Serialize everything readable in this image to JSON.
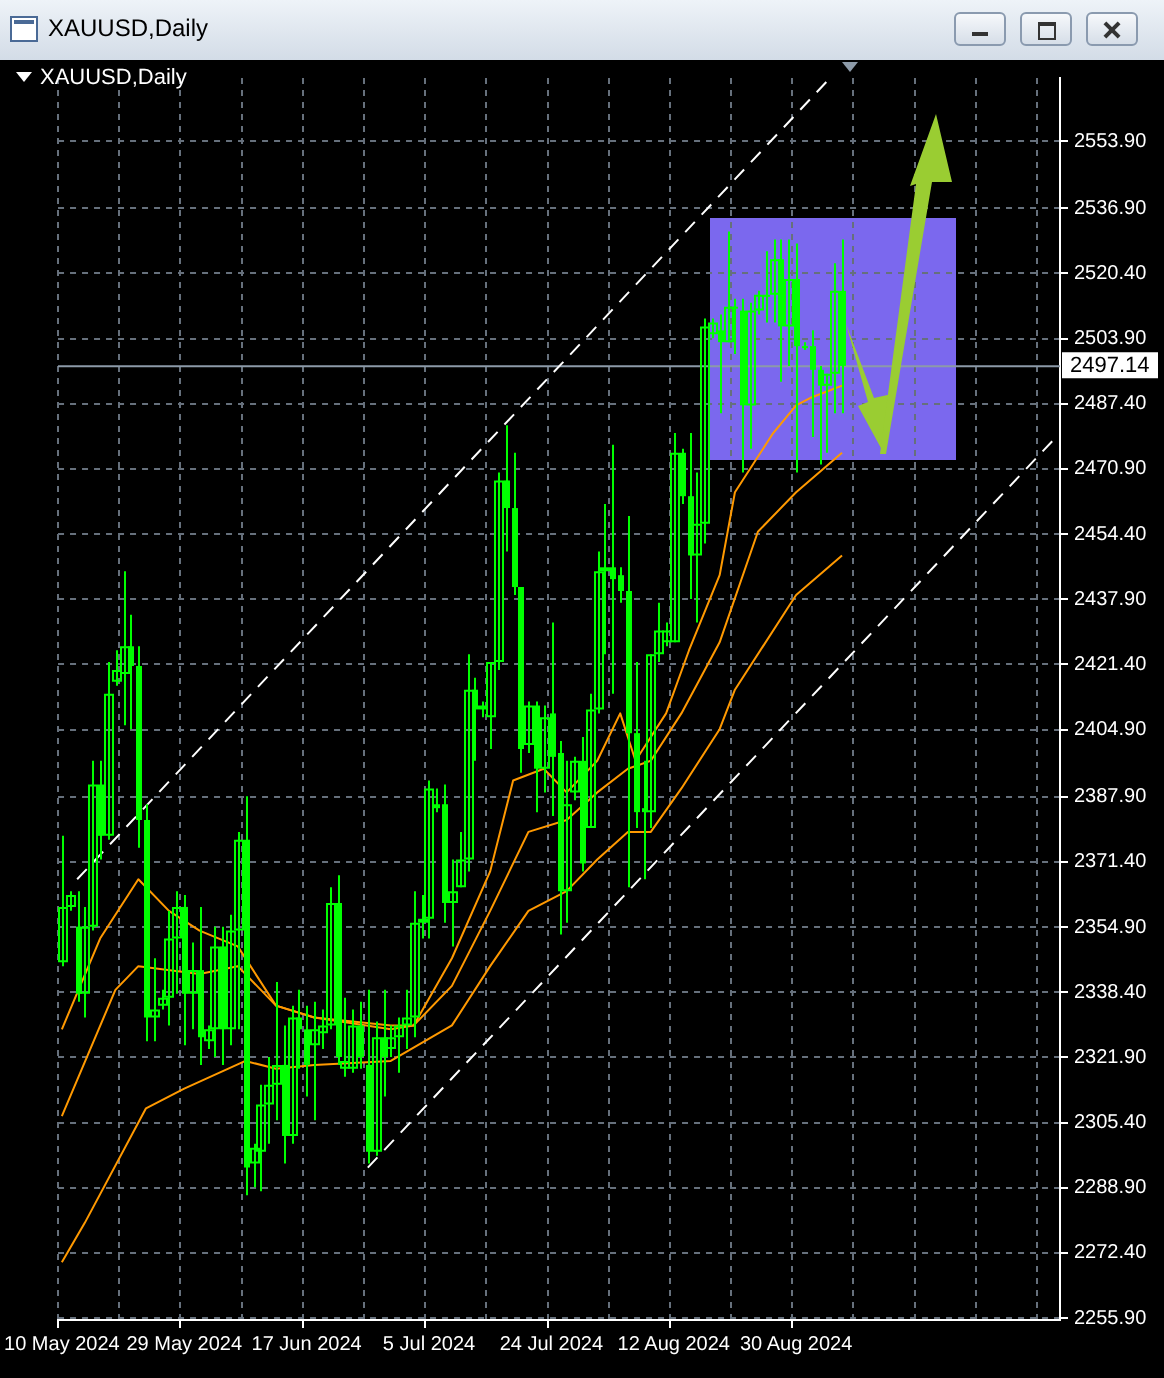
{
  "chart_data": {
    "type": "candlestick",
    "title": "XAUUSD,Daily",
    "subtitle": "XAUUSD,Daily",
    "categories": [
      "10 May 2024",
      null,
      null,
      null,
      null,
      null,
      null,
      null,
      null,
      null,
      null,
      null,
      null,
      null,
      null,
      null,
      "29 May 2024",
      null,
      null,
      null,
      null,
      null,
      null,
      null,
      null,
      null,
      null,
      null,
      null,
      null,
      null,
      null,
      "17 Jun 2024",
      null,
      null,
      null,
      null,
      null,
      null,
      null,
      null,
      null,
      null,
      null,
      null,
      null,
      null,
      null,
      "5 Jul 2024",
      null,
      null,
      null,
      null,
      null,
      null,
      null,
      null,
      null,
      null,
      null,
      null,
      null,
      null,
      null,
      "24 Jul 2024",
      null,
      null,
      null,
      null,
      null,
      null,
      null,
      null,
      null,
      null,
      null,
      null,
      null,
      null,
      null,
      "12 Aug 2024",
      null,
      null,
      null,
      null,
      null,
      null,
      null,
      null,
      null,
      null,
      null,
      null,
      null,
      null,
      null,
      "30 Aug 2024",
      null,
      null,
      null,
      null,
      null,
      null,
      null,
      null,
      null,
      null,
      null,
      null,
      null,
      null,
      null,
      null,
      null,
      null,
      null,
      null,
      null,
      null,
      null,
      null,
      null,
      null,
      null,
      null,
      null,
      null,
      null,
      null,
      null,
      null
    ],
    "color": "#00ff00",
    "ohlc": [
      [
        2346,
        2378,
        2345,
        2360
      ],
      [
        2360,
        2364,
        2359,
        2363
      ],
      [
        2355,
        2364,
        2336,
        2338
      ],
      [
        2338,
        2360,
        2332,
        2355
      ],
      [
        2355,
        2397,
        2354,
        2391
      ],
      [
        2391,
        2397,
        2372,
        2378
      ],
      [
        2378,
        2422,
        2377,
        2414
      ],
      [
        2417,
        2425,
        2416,
        2420
      ],
      [
        2419,
        2445,
        2406,
        2426
      ],
      [
        2426,
        2434,
        2405,
        2421
      ],
      [
        2421,
        2426,
        2375,
        2382
      ],
      [
        2382,
        2386,
        2326,
        2332
      ],
      [
        2332,
        2347,
        2326,
        2334
      ],
      [
        2335,
        2339,
        2334,
        2337
      ],
      [
        2337,
        2359,
        2330,
        2352
      ],
      [
        2352,
        2364,
        2338,
        2360
      ],
      [
        2360,
        2363,
        2325,
        2338
      ],
      [
        2338,
        2351,
        2329,
        2344
      ],
      [
        2344,
        2360,
        2320,
        2327
      ],
      [
        2326,
        2330,
        2324,
        2329
      ],
      [
        2329,
        2355,
        2322,
        2350
      ],
      [
        2350,
        2355,
        2320,
        2329
      ],
      [
        2329,
        2358,
        2325,
        2354
      ],
      [
        2354,
        2379,
        2329,
        2377
      ],
      [
        2377,
        2388,
        2287,
        2294
      ],
      [
        2295,
        2300,
        2289,
        2299
      ],
      [
        2298,
        2315,
        2288,
        2310
      ],
      [
        2310,
        2322,
        2300,
        2315
      ],
      [
        2315,
        2341,
        2306,
        2320
      ],
      [
        2320,
        2330,
        2295,
        2302
      ],
      [
        2302,
        2335,
        2300,
        2332
      ],
      [
        2332,
        2339,
        2319,
        2329
      ],
      [
        2329,
        2335,
        2312,
        2320
      ],
      [
        2325,
        2336,
        2306,
        2329
      ],
      [
        2328,
        2334,
        2324,
        2330
      ],
      [
        2330,
        2365,
        2329,
        2361
      ],
      [
        2361,
        2368,
        2320,
        2322
      ],
      [
        2319,
        2337,
        2317,
        2321
      ],
      [
        2319,
        2334,
        2318,
        2330
      ],
      [
        2330,
        2336,
        2319,
        2322
      ],
      [
        2320,
        2339,
        2295,
        2298
      ],
      [
        2298,
        2331,
        2297,
        2327
      ],
      [
        2327,
        2339,
        2312,
        2322
      ],
      [
        2324,
        2330,
        2322,
        2327
      ],
      [
        2327,
        2332,
        2318,
        2330
      ],
      [
        2330,
        2339,
        2324,
        2332
      ],
      [
        2332,
        2364,
        2327,
        2356
      ],
      [
        2356,
        2363,
        2352,
        2357
      ],
      [
        2357,
        2392,
        2352,
        2390
      ],
      [
        2386,
        2390,
        2384,
        2385
      ],
      [
        2386,
        2391,
        2356,
        2361
      ],
      [
        2361,
        2372,
        2350,
        2364
      ],
      [
        2365,
        2379,
        2365,
        2372
      ],
      [
        2372,
        2424,
        2369,
        2415
      ],
      [
        2415,
        2418,
        2397,
        2410
      ],
      [
        2410,
        2412,
        2408,
        2411
      ],
      [
        2408,
        2422,
        2400,
        2422
      ],
      [
        2422,
        2470,
        2420,
        2468
      ],
      [
        2468,
        2482,
        2450,
        2461
      ],
      [
        2461,
        2475,
        2439,
        2441
      ],
      [
        2441,
        2441,
        2394,
        2400
      ],
      [
        2401,
        2412,
        2399,
        2411
      ],
      [
        2411,
        2412,
        2384,
        2395
      ],
      [
        2395,
        2411,
        2389,
        2408
      ],
      [
        2409,
        2432,
        2383,
        2398
      ],
      [
        2399,
        2402,
        2353,
        2364
      ],
      [
        2364,
        2397,
        2356,
        2386
      ],
      [
        2389,
        2398,
        2387,
        2397
      ],
      [
        2397,
        2403,
        2369,
        2371
      ],
      [
        2380,
        2414,
        2380,
        2410
      ],
      [
        2410,
        2450,
        2409,
        2445
      ],
      [
        2445,
        2462,
        2424,
        2446
      ],
      [
        2446,
        2477,
        2414,
        2443
      ],
      [
        2444,
        2446,
        2437,
        2440
      ],
      [
        2440,
        2459,
        2365,
        2404
      ],
      [
        2404,
        2422,
        2380,
        2384
      ],
      [
        2385,
        2397,
        2367,
        2384
      ],
      [
        2384,
        2424,
        2380,
        2424
      ],
      [
        2424,
        2437,
        2422,
        2430
      ],
      [
        2427,
        2432,
        2426,
        2430
      ],
      [
        2427,
        2480,
        2427,
        2475
      ],
      [
        2475,
        2476,
        2462,
        2464
      ],
      [
        2464,
        2480,
        2438,
        2449
      ],
      [
        2449,
        2470,
        2432,
        2457
      ],
      [
        2457,
        2509,
        2452,
        2507
      ],
      [
        2505,
        2509,
        2504,
        2508
      ],
      [
        2506,
        2510,
        2485,
        2503
      ],
      [
        2503,
        2531,
        2503,
        2512
      ],
      [
        2512,
        2514,
        2500,
        2512
      ],
      [
        2511,
        2514,
        2470,
        2487
      ],
      [
        2487,
        2513,
        2476,
        2511
      ],
      [
        2511,
        2516,
        2510,
        2515
      ],
      [
        2515,
        2526,
        2508,
        2515
      ],
      [
        2515,
        2529,
        2508,
        2524
      ],
      [
        2524,
        2529,
        2493,
        2507
      ],
      [
        2507,
        2529,
        2497,
        2519
      ],
      [
        2519,
        2528,
        2470,
        2502
      ],
      [
        2502,
        2503,
        2501,
        2502
      ],
      [
        2502,
        2506,
        2479,
        2496
      ],
      [
        2496,
        2497,
        2472,
        2492
      ],
      [
        2492,
        2495,
        2475,
        2495
      ],
      [
        2495,
        2523,
        2485,
        2516
      ],
      [
        2516,
        2529,
        2485,
        2497
      ],
      null,
      null,
      null,
      null,
      null,
      null,
      null,
      null,
      null,
      null,
      null,
      null,
      null,
      null,
      null,
      null,
      null,
      null,
      null,
      null,
      null,
      null,
      null,
      null,
      null,
      null,
      null,
      null
    ],
    "series": [
      {
        "type": "line",
        "color": "#ff9900",
        "values": [
          2329,
          null,
          null,
          null,
          null,
          2352,
          null,
          null,
          null,
          null,
          2367,
          null,
          null,
          null,
          2359,
          null,
          null,
          null,
          2354,
          null,
          null,
          null,
          null,
          2350,
          null,
          null,
          null,
          null,
          2335,
          null,
          null,
          null,
          null,
          2332,
          null,
          null,
          null,
          null,
          null,
          null,
          null,
          null,
          null,
          2330,
          null,
          null,
          2330,
          null,
          null,
          null,
          null,
          2347,
          null,
          null,
          null,
          null,
          2369,
          null,
          null,
          2392,
          null,
          null,
          null,
          2395,
          null,
          null,
          2389,
          null,
          null,
          null,
          2397,
          null,
          null,
          2409,
          null,
          2397,
          null,
          null,
          null,
          2409,
          null,
          null,
          2425,
          null,
          null,
          null,
          2444,
          null,
          2465,
          null,
          null,
          null,
          null,
          2480,
          null,
          null,
          2487,
          null,
          2489,
          null,
          null,
          null,
          2492,
          null,
          null,
          null,
          null,
          null,
          null,
          null,
          null,
          null,
          null,
          null,
          null,
          null,
          null,
          null,
          null,
          null,
          null,
          null,
          null,
          null,
          null,
          null,
          null,
          null,
          null,
          null,
          null
        ]
      },
      {
        "type": "line",
        "color": "#ff9900",
        "values": [
          2307,
          null,
          null,
          null,
          null,
          null,
          null,
          2339,
          null,
          null,
          2345,
          null,
          null,
          null,
          null,
          null,
          null,
          null,
          2343,
          null,
          null,
          null,
          null,
          2345,
          null,
          null,
          null,
          null,
          2335,
          null,
          null,
          null,
          null,
          2332,
          null,
          null,
          null,
          null,
          null,
          null,
          null,
          null,
          null,
          2329,
          null,
          null,
          2330,
          null,
          null,
          null,
          null,
          2340,
          null,
          null,
          null,
          null,
          2359,
          null,
          null,
          null,
          null,
          2379,
          null,
          null,
          null,
          null,
          2382,
          null,
          null,
          null,
          2389,
          null,
          null,
          null,
          2395,
          null,
          null,
          2397,
          null,
          null,
          null,
          2409,
          null,
          null,
          null,
          null,
          2427,
          null,
          null,
          null,
          null,
          2455,
          null,
          null,
          null,
          null,
          2465,
          null,
          null,
          null,
          null,
          null,
          2475,
          null,
          null,
          null,
          null,
          null,
          null,
          null,
          null,
          null,
          null,
          null,
          null,
          null,
          null,
          null,
          null,
          null,
          null,
          null,
          null,
          null,
          null,
          null,
          null,
          null,
          null,
          null,
          null
        ]
      },
      {
        "type": "line",
        "color": "#ff9900",
        "values": [
          2270,
          null,
          null,
          2280,
          null,
          null,
          null,
          null,
          null,
          null,
          null,
          2309,
          null,
          null,
          null,
          null,
          2314,
          null,
          null,
          null,
          null,
          null,
          null,
          null,
          2321,
          null,
          null,
          null,
          2319,
          null,
          null,
          null,
          null,
          2320,
          null,
          null,
          null,
          null,
          null,
          null,
          null,
          null,
          null,
          2321,
          null,
          null,
          null,
          null,
          null,
          null,
          null,
          2330,
          null,
          null,
          null,
          null,
          2345,
          null,
          null,
          null,
          null,
          2359,
          null,
          null,
          null,
          null,
          2364,
          null,
          null,
          null,
          2372,
          null,
          null,
          null,
          2379,
          null,
          null,
          2379,
          null,
          null,
          null,
          2390,
          null,
          null,
          null,
          null,
          2405,
          null,
          2415,
          null,
          null,
          null,
          null,
          null,
          null,
          null,
          2439,
          null,
          null,
          null,
          null,
          null,
          2449,
          null,
          null,
          null,
          null,
          null,
          null,
          null,
          null,
          null,
          null,
          null,
          null,
          null,
          null,
          null,
          null,
          null,
          null,
          null,
          null,
          null,
          null,
          null,
          null,
          null,
          null,
          null,
          null
        ]
      },
      {
        "type": "line",
        "color": "#ffffff",
        "line_style": "dashed",
        "values": [
          null,
          null,
          2367,
          null,
          null,
          null,
          null,
          null,
          null,
          null,
          null,
          null,
          null,
          null,
          null,
          null,
          null,
          null,
          null,
          null,
          null,
          null,
          null,
          null,
          null,
          null,
          null,
          null,
          null,
          null,
          null,
          null,
          null,
          null,
          null,
          null,
          null,
          null,
          null,
          null,
          null,
          null,
          null,
          null,
          null,
          null,
          null,
          null,
          null,
          null,
          null,
          null,
          null,
          null,
          null,
          null,
          null,
          null,
          null,
          null,
          null,
          null,
          null,
          null,
          null,
          null,
          null,
          null,
          null,
          null,
          null,
          null,
          null,
          null,
          null,
          null,
          null,
          null,
          null,
          null,
          null,
          null,
          null,
          null,
          null,
          null,
          null,
          null,
          null,
          null,
          null,
          null,
          null,
          null,
          null,
          null,
          null,
          null,
          null,
          null,
          2569,
          null,
          null,
          null,
          null,
          null,
          null,
          null,
          null,
          null,
          null,
          null,
          null,
          null,
          null,
          null,
          null,
          null,
          null,
          null,
          null,
          null,
          null,
          null,
          null,
          null,
          null,
          null,
          null,
          null,
          null
        ]
      },
      {
        "type": "line",
        "color": "#ffffff",
        "line_style": "dashed",
        "values": [
          null,
          null,
          null,
          null,
          null,
          null,
          null,
          null,
          null,
          null,
          null,
          null,
          null,
          null,
          null,
          null,
          null,
          null,
          null,
          null,
          null,
          null,
          null,
          null,
          null,
          null,
          null,
          null,
          null,
          null,
          null,
          null,
          null,
          null,
          null,
          null,
          null,
          null,
          null,
          null,
          2294,
          null,
          null,
          null,
          null,
          null,
          null,
          null,
          null,
          null,
          null,
          null,
          null,
          null,
          null,
          null,
          null,
          null,
          null,
          null,
          null,
          null,
          null,
          null,
          null,
          null,
          null,
          null,
          null,
          null,
          null,
          null,
          null,
          null,
          null,
          null,
          null,
          null,
          null,
          null,
          null,
          null,
          null,
          null,
          null,
          null,
          null,
          null,
          null,
          null,
          null,
          null,
          null,
          null,
          null,
          null,
          null,
          null,
          null,
          null,
          null,
          null,
          null,
          null,
          null,
          null,
          null,
          null,
          null,
          null,
          null,
          null,
          null,
          null,
          null,
          null,
          null,
          null,
          null,
          null,
          null,
          null,
          null,
          null,
          null,
          null,
          null,
          null,
          null,
          null,
          2479
        ]
      }
    ],
    "ylim": [
      2255.4,
      2569.9
    ],
    "yticks": [
      {
        "value": 2255.9,
        "label": "2255.90"
      },
      {
        "value": 2272.4,
        "label": "2272.40"
      },
      {
        "value": 2288.9,
        "label": "2288.90"
      },
      {
        "value": 2305.4,
        "label": "2305.40"
      },
      {
        "value": 2321.9,
        "label": "2321.90"
      },
      {
        "value": 2338.4,
        "label": "2338.40"
      },
      {
        "value": 2354.9,
        "label": "2354.90"
      },
      {
        "value": 2371.4,
        "label": "2371.40"
      },
      {
        "value": 2387.9,
        "label": "2387.90"
      },
      {
        "value": 2404.9,
        "label": "2404.90"
      },
      {
        "value": 2421.4,
        "label": "2421.40"
      },
      {
        "value": 2437.9,
        "label": "2437.90"
      },
      {
        "value": 2454.4,
        "label": "2454.40"
      },
      {
        "value": 2470.9,
        "label": "2470.90"
      },
      {
        "value": 2487.4,
        "label": "2487.40"
      },
      {
        "value": 2503.9,
        "label": "2503.90"
      },
      {
        "value": 2520.4,
        "label": "2520.40"
      },
      {
        "value": 2536.9,
        "label": "2536.90"
      },
      {
        "value": 2553.9,
        "label": "2553.90"
      }
    ],
    "ref_lines": [
      {
        "axis": "y",
        "value": 2497.14,
        "label": "2497.14",
        "color": "#8c9aa8"
      }
    ],
    "grid": true,
    "marker": "none"
  }
}
